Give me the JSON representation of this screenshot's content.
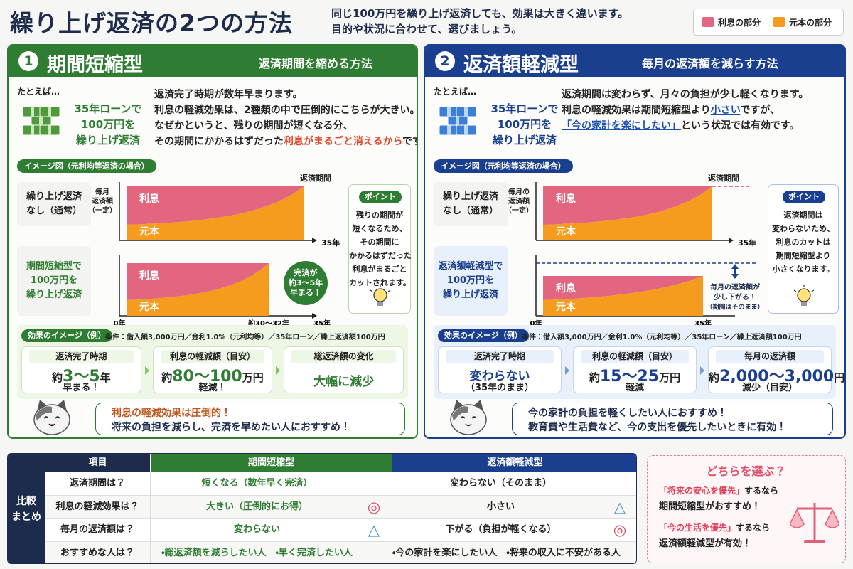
{
  "header": {
    "title": "繰り上げ返済の2つの方法",
    "subtitle": [
      "同じ100万円を繰り上げ返済しても、効果は大きく違います。",
      "目的や状況に合わせて、選びましょう。"
    ],
    "legend": [
      {
        "name": "利息の部分",
        "color": "#e2667f"
      },
      {
        "name": "元本の部分",
        "color": "#f59c1f"
      }
    ]
  },
  "methods": [
    {
      "number": "1",
      "name": "期間短縮型",
      "tagline": "返済期間を縮める方法",
      "example_lead": "たとえば…",
      "example": [
        "35年ローンで",
        "100万円を",
        "繰り上げ返済"
      ],
      "description": [
        "返済完了時期が数年早まります。",
        "利息の軽減効果は、2種類の中で圧倒的にこちらが大きい。",
        "なぜかというと、残りの期間が短くなる分、",
        {
          "before": "その期間にかかるはずだった",
          "highlight": "利息がまるごと消えるから",
          "after": "です。"
        }
      ],
      "diagram": {
        "label": "イメージ図（元利均等返済の場合）",
        "period_label": "返済期間",
        "y_axis_label": [
          "毎月",
          "返済額",
          "（一定）"
        ],
        "rows": [
          {
            "label": [
              "繰り上げ返済",
              "なし（通常）"
            ],
            "interest": "利息",
            "principal": "元本",
            "ticks": [
              "35年"
            ]
          },
          {
            "label": [
              "期間短縮型で",
              "100万円を",
              "繰り上げ返済"
            ],
            "interest": "利息",
            "principal": "元本",
            "ticks": [
              "0年",
              "約30～32年",
              "35年"
            ],
            "note": [
              "完済が",
              "約3～5年",
              "早まる！"
            ]
          }
        ],
        "point": {
          "title": "ポイント",
          "lines": [
            "残りの期間が",
            "短くなるため、",
            "その期間に",
            "かかるはずだった",
            "利息がまるごと",
            "カットされます。"
          ]
        }
      },
      "effects": {
        "label": "効果のイメージ（例）",
        "conditions": "条件：借入額3,000万円／金利1.0%（元利均等）／35年ローン／繰上返済額100万円",
        "cards": [
          {
            "title": "返済完了時期",
            "value": [
              "約",
              "3～5",
              "年"
            ],
            "note": "早まる！"
          },
          {
            "title": "利息の軽減額（目安）",
            "value": [
              "約",
              "80～100",
              "万円"
            ],
            "note": "軽減！"
          },
          {
            "title": "総返済額の変化",
            "value": [
              "大幅に減少"
            ]
          }
        ]
      },
      "speech": [
        "利息の軽減効果は圧倒的！",
        "将来の負担を減らし、完済を早めたい人におすすめ！"
      ]
    },
    {
      "number": "2",
      "name": "返済額軽減型",
      "tagline": "毎月の返済額を減らす方法",
      "example_lead": "たとえば…",
      "example": [
        "35年ローンで",
        "100万円を",
        "繰り上げ返済"
      ],
      "description": [
        "返済期間は変わらず、月々の負担が少し軽くなります。",
        {
          "before": "利息の軽減効果は期間短縮型より",
          "highlight": "小さい",
          "after": "ですが、"
        },
        {
          "highlight": "「今の家計を楽にしたい」",
          "after": "という状況では有効です。"
        }
      ],
      "diagram": {
        "label": "イメージ図（元利均等返済の場合）",
        "period_label": "返済期間",
        "y_axis_label": [
          "毎月の",
          "返済額",
          "（一定）"
        ],
        "rows": [
          {
            "label": [
              "繰り上げ返済",
              "なし（通常）"
            ],
            "interest": "利息",
            "principal": "元本",
            "ticks": [
              "35年"
            ]
          },
          {
            "label": [
              "返済額軽減型で",
              "100万円を",
              "繰り上げ返済"
            ],
            "interest": "利息",
            "principal": "元本",
            "ticks": [
              "0年",
              "35年"
            ],
            "note": [
              "毎月の返済額が",
              "少し下がる！",
              "（期間はそのまま）"
            ]
          }
        ],
        "point": {
          "title": "ポイント",
          "lines": [
            "返済期間は",
            "変わらないため、",
            "利息のカットは",
            "期間短縮型より",
            "小さくなります。"
          ]
        }
      },
      "effects": {
        "label": "効果のイメージ（例）",
        "conditions": "条件：借入額3,000万円／金利1.0%（元利均等）／35年ローン／繰上返済額100万円",
        "cards": [
          {
            "title": "返済完了時期",
            "value": [
              "変わらない"
            ],
            "note": "（35年のまま）"
          },
          {
            "title": "利息の軽減額（目安）",
            "value": [
              "約",
              "15～25",
              "万円"
            ],
            "note": "軽減"
          },
          {
            "title": "毎月の返済額",
            "value": [
              "約",
              "2,000～3,000",
              "円"
            ],
            "note": "減少（目安）"
          }
        ]
      },
      "speech": [
        "今の家計の負担を軽くしたい人におすすめ！",
        "教育費や生活費など、今の支出を優先したいときに有効！"
      ]
    }
  ],
  "comparison": {
    "side_label": [
      "比較",
      "まとめ"
    ],
    "headers": [
      "項目",
      "期間短縮型",
      "返済額軽減型"
    ],
    "rows": [
      {
        "item": "返済期間は？",
        "a": "短くなる（数年早く完済）",
        "b": "変わらない（そのまま）"
      },
      {
        "item": "利息の軽減効果は？",
        "a": "大きい（圧倒的にお得）",
        "b": "小さい",
        "a_mark": {
          "symbol": "◎",
          "color": "#d94a63"
        },
        "b_mark": {
          "symbol": "△",
          "color": "#3a8fd0"
        }
      },
      {
        "item": "毎月の返済額は？",
        "a": "変わらない",
        "b": "下がる（負担が軽くなる）",
        "a_mark": {
          "symbol": "△",
          "color": "#3a8fd0"
        },
        "b_mark": {
          "symbol": "◎",
          "color": "#d94a63"
        }
      },
      {
        "item": "おすすめな人は？",
        "a": "・総返済額を減らしたい人　・早く完済したい人",
        "b": "・今の家計を楽にしたい人　・将来の収入に不安がある人"
      }
    ]
  },
  "choice": {
    "title": "どちらを選ぶ？",
    "items": [
      {
        "highlight": "「将来の安心を優先」",
        "after": "するなら",
        "answer": "期間短縮型がおすすめ！"
      },
      {
        "highlight": "「今の生活を優先」",
        "after": "するなら",
        "answer": "返済額軽減型が有効！"
      }
    ]
  }
}
